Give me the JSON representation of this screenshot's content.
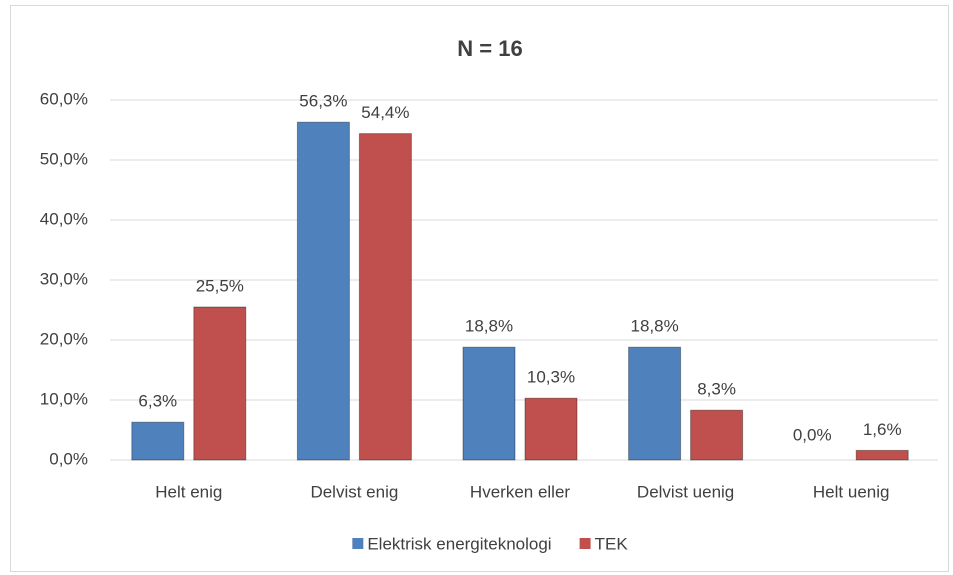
{
  "chart_data": {
    "type": "bar",
    "title": "N = 16",
    "categories": [
      "Helt enig",
      "Delvist enig",
      "Hverken eller",
      "Delvist uenig",
      "Helt uenig"
    ],
    "series": [
      {
        "name": "Elektrisk energiteknologi",
        "color": "#4f81bd",
        "values": [
          6.3,
          56.3,
          18.8,
          18.8,
          0.0
        ],
        "value_labels": [
          "6,3%",
          "56,3%",
          "18,8%",
          "18,8%",
          "0,0%"
        ]
      },
      {
        "name": "TEK",
        "color": "#c0504d",
        "values": [
          25.5,
          54.4,
          10.3,
          8.3,
          1.6
        ],
        "value_labels": [
          "25,5%",
          "54,4%",
          "10,3%",
          "8,3%",
          "1,6%"
        ]
      }
    ],
    "ylim": [
      0,
      60
    ],
    "yticks": [
      {
        "value": 0,
        "label": "0,0%"
      },
      {
        "value": 10,
        "label": "10,0%"
      },
      {
        "value": 20,
        "label": "20,0%"
      },
      {
        "value": 30,
        "label": "30,0%"
      },
      {
        "value": 40,
        "label": "40,0%"
      },
      {
        "value": 50,
        "label": "50,0%"
      },
      {
        "value": 60,
        "label": "60,0%"
      }
    ],
    "grid": true,
    "legend": "bottom"
  }
}
